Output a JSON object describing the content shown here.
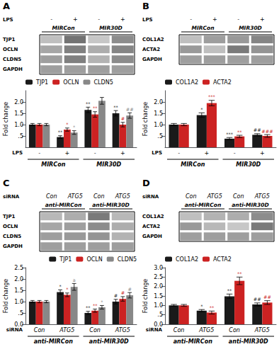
{
  "chart_data": [
    {
      "type": "heatmap",
      "title": "A",
      "xlabel": "LPS",
      "categories": [
        "-",
        "+",
        "-",
        "+"
      ],
      "groups": [
        "MIRCon",
        "MIR30D"
      ],
      "rows": [
        "TJP1",
        "OCLN",
        "CLDN5",
        "GAPDH"
      ],
      "values": [
        [
          0.25,
          0.55,
          0.22,
          0.45
        ],
        [
          0.35,
          0.5,
          0.32,
          0.48
        ],
        [
          0.38,
          0.5,
          0.3,
          0.45
        ],
        [
          0.38,
          0.38,
          0.38,
          0.38
        ]
      ],
      "zlim": [
        0,
        1
      ]
    },
    {
      "type": "bar",
      "categories": [
        "-",
        "+",
        "-",
        "+"
      ],
      "groups": [
        "MIRCon",
        "MIR30D"
      ],
      "xlabel": "LPS",
      "ylabel": "Fold change",
      "ylim": [
        0,
        2.5
      ],
      "yticks": [
        {
          "value": 0.5,
          "label": ".5"
        },
        {
          "value": 1.0,
          "label": "1.0"
        },
        1.5,
        {
          "value": 2.0,
          "label": "2.0"
        }
      ],
      "grid": false,
      "legend": "upper left",
      "series": [
        {
          "name": "TJP1",
          "color": "#1a1a1a",
          "values": [
            1.0,
            0.45,
            1.65,
            1.5
          ],
          "errors": [
            0.05,
            0.06,
            0.12,
            0.12
          ],
          "marks": [
            null,
            "**",
            "**",
            "**"
          ]
        },
        {
          "name": "OCLN",
          "color": "#cc2222",
          "values": [
            1.0,
            0.78,
            1.45,
            1.0
          ],
          "errors": [
            0.05,
            0.07,
            0.12,
            0.1
          ],
          "marks": [
            null,
            "*",
            "**",
            "#"
          ]
        },
        {
          "name": "CLDN5",
          "color": "#888888",
          "values": [
            1.0,
            0.65,
            2.05,
            1.4
          ],
          "errors": [
            0.05,
            0.08,
            0.15,
            0.12
          ],
          "marks": [
            null,
            "*",
            null,
            "##"
          ]
        }
      ]
    },
    {
      "type": "heatmap",
      "title": "B",
      "xlabel": "LPS",
      "categories": [
        "-",
        "+",
        "-",
        "+"
      ],
      "groups": [
        "MIRCon",
        "MIR30D"
      ],
      "rows": [
        "COL1A2",
        "ACTA2",
        "GAPDH"
      ],
      "values": [
        [
          0.25,
          0.38,
          0.4,
          0.48
        ],
        [
          0.4,
          0.25,
          0.52,
          0.42
        ],
        [
          0.38,
          0.38,
          0.38,
          0.38
        ]
      ],
      "zlim": [
        0,
        1
      ]
    },
    {
      "type": "bar",
      "categories": [
        "-",
        "+",
        "-",
        "+"
      ],
      "groups": [
        "MIRCon",
        "MIR30D"
      ],
      "xlabel": "LPS",
      "ylabel": "Fold change",
      "ylim": [
        0,
        2.5
      ],
      "yticks": [
        {
          "value": 0.5,
          "label": ".5"
        },
        {
          "value": 1.0,
          "label": "1.0"
        },
        1.5,
        {
          "value": 2.0,
          "label": "2.0"
        }
      ],
      "grid": false,
      "legend": "upper left",
      "series": [
        {
          "name": "COL1A2",
          "color": "#1a1a1a",
          "values": [
            1.0,
            1.42,
            0.38,
            0.55
          ],
          "errors": [
            0.05,
            0.1,
            0.05,
            0.05
          ],
          "marks": [
            null,
            "*",
            "***",
            "##"
          ]
        },
        {
          "name": "ACTA2",
          "color": "#cc2222",
          "values": [
            1.0,
            1.95,
            0.48,
            0.5
          ],
          "errors": [
            0.05,
            0.12,
            0.05,
            0.06
          ],
          "marks": [
            null,
            "***",
            "**",
            "###"
          ]
        }
      ]
    },
    {
      "type": "heatmap",
      "title": "C",
      "xlabel": "siRNA",
      "categories": [
        "Con",
        "ATG5",
        "Con",
        "ATG5"
      ],
      "groups": [
        "anti-MIRCon",
        "anti-MIR30D"
      ],
      "rows": [
        "TJP1",
        "OCLN",
        "CLDN5",
        "GAPDH"
      ],
      "values": [
        [
          0.28,
          0.32,
          0.52,
          0.28
        ],
        [
          0.35,
          0.38,
          0.45,
          0.32
        ],
        [
          0.38,
          0.4,
          0.42,
          0.3
        ],
        [
          0.38,
          0.38,
          0.38,
          0.38
        ]
      ],
      "zlim": [
        0,
        1
      ]
    },
    {
      "type": "bar",
      "categories": [
        "Con",
        "ATG5",
        "Con",
        "ATG5"
      ],
      "groups": [
        "anti-MIRCon",
        "anti-MIR30D"
      ],
      "xlabel": "siRNA",
      "ylabel": "Fold change",
      "ylim": [
        0,
        2.5
      ],
      "yticks": [
        {
          "value": 0.0,
          "label": "0.0"
        },
        {
          "value": 0.5,
          "label": ".5"
        },
        {
          "value": 1.0,
          "label": "1.0"
        },
        1.5,
        {
          "value": 2.0,
          "label": "2.0"
        },
        2.5
      ],
      "grid": false,
      "legend": "upper right",
      "series": [
        {
          "name": "TJP1",
          "color": "#1a1a1a",
          "values": [
            1.0,
            1.42,
            0.5,
            1.0
          ],
          "errors": [
            0.05,
            0.1,
            0.07,
            0.1
          ],
          "marks": [
            null,
            "*",
            "**",
            "#"
          ]
        },
        {
          "name": "OCLN",
          "color": "#cc2222",
          "values": [
            1.0,
            1.3,
            0.6,
            1.12
          ],
          "errors": [
            0.05,
            0.08,
            0.07,
            0.1
          ],
          "marks": [
            null,
            "*",
            "**",
            "#"
          ]
        },
        {
          "name": "CLDN5",
          "color": "#888888",
          "values": [
            1.0,
            1.65,
            0.75,
            1.28
          ],
          "errors": [
            0.05,
            0.15,
            0.08,
            0.12
          ],
          "marks": [
            null,
            "a",
            "*",
            "#"
          ]
        }
      ]
    },
    {
      "type": "heatmap",
      "title": "D",
      "xlabel": "siRNA",
      "categories": [
        "Con",
        "ATG5",
        "Con",
        "ATG5"
      ],
      "groups": [
        "anti-MIRCon",
        "anti-MIR30D"
      ],
      "rows": [
        "COL1A2",
        "ACTA2",
        "GAPDH"
      ],
      "values": [
        [
          0.25,
          0.3,
          0.32,
          0.45
        ],
        [
          0.4,
          0.28,
          0.22,
          0.52
        ],
        [
          0.38,
          0.38,
          0.38,
          0.38
        ]
      ],
      "zlim": [
        0,
        1
      ]
    },
    {
      "type": "bar",
      "categories": [
        "Con",
        "ATG5",
        "Con",
        "ATG5"
      ],
      "groups": [
        "anti-MIRCon",
        "anti-MIR30D"
      ],
      "xlabel": "siRNA",
      "ylabel": "Fold change",
      "ylim": [
        0,
        3.0
      ],
      "yticks": [
        {
          "value": 0.0,
          "label": "0.0"
        },
        {
          "value": 0.5,
          "label": ".5"
        },
        {
          "value": 1.0,
          "label": "1.0"
        },
        1.5,
        {
          "value": 2.0,
          "label": "2.0"
        },
        2.5,
        {
          "value": 3.0,
          "label": "3.0"
        }
      ],
      "grid": false,
      "legend": "upper left",
      "series": [
        {
          "name": "COL1A2",
          "color": "#1a1a1a",
          "values": [
            1.0,
            0.72,
            1.48,
            1.05
          ],
          "errors": [
            0.05,
            0.06,
            0.12,
            0.08
          ],
          "marks": [
            null,
            "*",
            "**",
            "##"
          ]
        },
        {
          "name": "ACTA2",
          "color": "#cc2222",
          "values": [
            1.0,
            0.62,
            2.3,
            1.15
          ],
          "errors": [
            0.05,
            0.08,
            0.2,
            0.1
          ],
          "marks": [
            null,
            "**",
            "**",
            "##"
          ]
        }
      ]
    }
  ]
}
